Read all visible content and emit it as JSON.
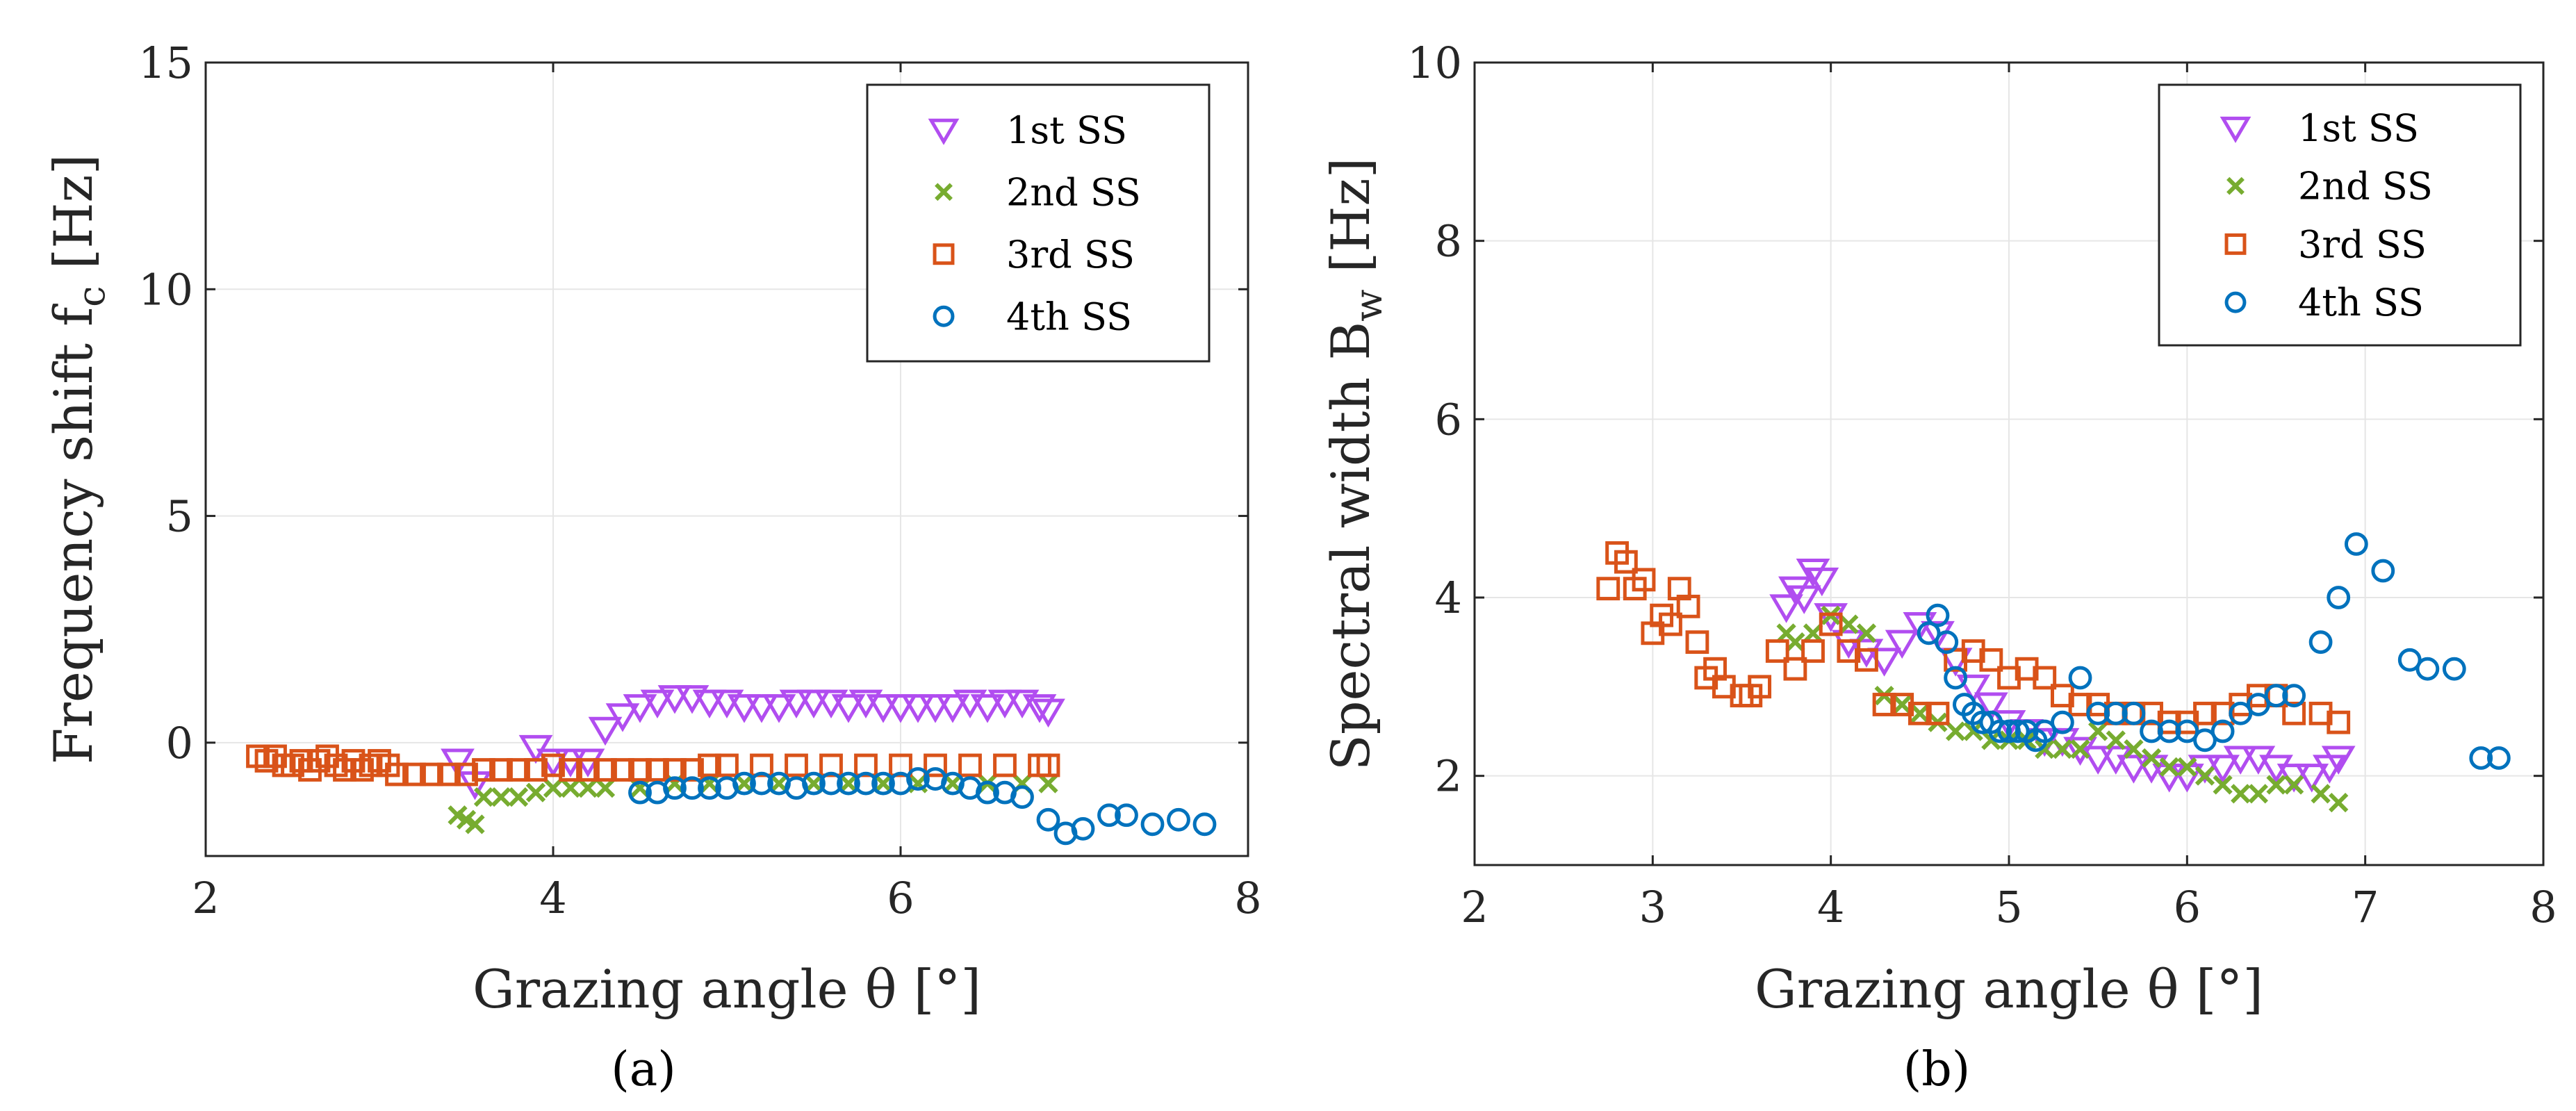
{
  "figure": {
    "caption_a": "(a)",
    "caption_b": "(b)"
  },
  "colors": {
    "ss1": "#b14df0",
    "ss2": "#77ac30",
    "ss3": "#d95319",
    "ss4": "#0072bd",
    "grid": "#e6e6e6",
    "axis": "#262626"
  },
  "chart_data": [
    {
      "id": "a",
      "type": "scatter",
      "xlabel": "Grazing angle θ [°]",
      "ylabel": "Frequency shift  f",
      "ylabel_sub": "c",
      "ylabel_unit": " [Hz]",
      "xlim": [
        2,
        8
      ],
      "ylim": [
        -2.5,
        15
      ],
      "xticks": [
        2,
        4,
        6,
        8
      ],
      "yticks": [
        0,
        5,
        10,
        15
      ],
      "grid": true,
      "legend": "top-right",
      "series": [
        {
          "name": "1st SS",
          "marker": "triangle-down",
          "color": "#b14df0",
          "x": [
            3.45,
            3.55,
            3.9,
            4.0,
            4.1,
            4.2,
            4.3,
            4.4,
            4.5,
            4.6,
            4.7,
            4.8,
            4.9,
            5.0,
            5.1,
            5.2,
            5.3,
            5.4,
            5.5,
            5.6,
            5.7,
            5.8,
            5.9,
            6.0,
            6.1,
            6.2,
            6.3,
            6.4,
            6.5,
            6.6,
            6.7,
            6.8,
            6.85
          ],
          "y": [
            -0.4,
            -0.9,
            -0.1,
            -0.4,
            -0.4,
            -0.4,
            0.3,
            0.6,
            0.8,
            0.9,
            1.0,
            1.0,
            0.9,
            0.9,
            0.8,
            0.8,
            0.8,
            0.9,
            0.9,
            0.9,
            0.8,
            0.9,
            0.8,
            0.8,
            0.8,
            0.8,
            0.8,
            0.9,
            0.8,
            0.9,
            0.9,
            0.8,
            0.7
          ]
        },
        {
          "name": "2nd SS",
          "marker": "x",
          "color": "#77ac30",
          "x": [
            3.45,
            3.5,
            3.55,
            3.6,
            3.7,
            3.8,
            3.9,
            4.0,
            4.1,
            4.2,
            4.3,
            4.5,
            4.7,
            4.9,
            5.1,
            5.3,
            5.5,
            5.7,
            5.9,
            6.1,
            6.3,
            6.5,
            6.7,
            6.85
          ],
          "y": [
            -1.6,
            -1.7,
            -1.8,
            -1.2,
            -1.2,
            -1.2,
            -1.1,
            -1.0,
            -1.0,
            -1.0,
            -1.0,
            -1.0,
            -0.9,
            -0.9,
            -0.9,
            -0.9,
            -0.9,
            -0.9,
            -0.9,
            -0.9,
            -0.9,
            -0.9,
            -0.9,
            -0.9
          ]
        },
        {
          "name": "3rd SS",
          "marker": "square",
          "color": "#d95319",
          "x": [
            2.3,
            2.35,
            2.4,
            2.45,
            2.5,
            2.55,
            2.6,
            2.65,
            2.7,
            2.75,
            2.8,
            2.85,
            2.9,
            2.95,
            3.0,
            3.05,
            3.1,
            3.2,
            3.3,
            3.4,
            3.5,
            3.6,
            3.7,
            3.8,
            3.9,
            4.0,
            4.1,
            4.2,
            4.3,
            4.4,
            4.5,
            4.6,
            4.7,
            4.8,
            4.9,
            5.0,
            5.2,
            5.4,
            5.6,
            5.8,
            6.0,
            6.2,
            6.4,
            6.6,
            6.8,
            6.85
          ],
          "y": [
            -0.3,
            -0.4,
            -0.3,
            -0.5,
            -0.5,
            -0.4,
            -0.6,
            -0.4,
            -0.3,
            -0.5,
            -0.6,
            -0.4,
            -0.6,
            -0.5,
            -0.4,
            -0.5,
            -0.7,
            -0.7,
            -0.7,
            -0.7,
            -0.7,
            -0.6,
            -0.6,
            -0.6,
            -0.6,
            -0.5,
            -0.6,
            -0.6,
            -0.6,
            -0.6,
            -0.6,
            -0.6,
            -0.6,
            -0.6,
            -0.5,
            -0.5,
            -0.5,
            -0.5,
            -0.5,
            -0.5,
            -0.5,
            -0.5,
            -0.5,
            -0.5,
            -0.5,
            -0.5
          ]
        },
        {
          "name": "4th SS",
          "marker": "circle",
          "color": "#0072bd",
          "x": [
            4.5,
            4.6,
            4.7,
            4.8,
            4.9,
            5.0,
            5.1,
            5.2,
            5.3,
            5.4,
            5.5,
            5.6,
            5.7,
            5.8,
            5.9,
            6.0,
            6.1,
            6.2,
            6.3,
            6.4,
            6.5,
            6.6,
            6.7,
            6.85,
            6.95,
            7.05,
            7.2,
            7.3,
            7.45,
            7.6,
            7.75
          ],
          "y": [
            -1.1,
            -1.1,
            -1.0,
            -1.0,
            -1.0,
            -1.0,
            -0.9,
            -0.9,
            -0.9,
            -1.0,
            -0.9,
            -0.9,
            -0.9,
            -0.9,
            -0.9,
            -0.9,
            -0.8,
            -0.8,
            -0.9,
            -1.0,
            -1.1,
            -1.1,
            -1.2,
            -1.7,
            -2.0,
            -1.9,
            -1.6,
            -1.6,
            -1.8,
            -1.7,
            -1.8
          ]
        }
      ]
    },
    {
      "id": "b",
      "type": "scatter",
      "xlabel": "Grazing angle θ [°]",
      "ylabel": "Spectral width B",
      "ylabel_sub": "w",
      "ylabel_unit": " [Hz]",
      "xlim": [
        2,
        8
      ],
      "ylim": [
        1,
        10
      ],
      "xticks": [
        2,
        3,
        4,
        5,
        6,
        7,
        8
      ],
      "yticks": [
        2,
        4,
        6,
        8,
        10
      ],
      "grid": true,
      "legend": "top-right",
      "series": [
        {
          "name": "1st SS",
          "marker": "triangle-down",
          "color": "#b14df0",
          "x": [
            3.75,
            3.8,
            3.85,
            3.9,
            3.95,
            4.0,
            4.1,
            4.2,
            4.3,
            4.4,
            4.5,
            4.6,
            4.7,
            4.8,
            4.9,
            5.0,
            5.1,
            5.2,
            5.3,
            5.4,
            5.5,
            5.6,
            5.7,
            5.8,
            5.9,
            6.0,
            6.1,
            6.2,
            6.3,
            6.4,
            6.5,
            6.6,
            6.7,
            6.8,
            6.85
          ],
          "y": [
            3.9,
            4.1,
            4.0,
            4.3,
            4.2,
            3.8,
            3.5,
            3.4,
            3.3,
            3.5,
            3.7,
            3.6,
            3.3,
            3.0,
            2.8,
            2.6,
            2.5,
            2.4,
            2.4,
            2.3,
            2.2,
            2.2,
            2.1,
            2.1,
            2.0,
            2.0,
            2.1,
            2.1,
            2.2,
            2.2,
            2.1,
            2.0,
            2.0,
            2.1,
            2.2
          ]
        },
        {
          "name": "2nd SS",
          "marker": "x",
          "color": "#77ac30",
          "x": [
            3.75,
            3.8,
            3.9,
            4.0,
            4.1,
            4.2,
            4.3,
            4.4,
            4.5,
            4.6,
            4.7,
            4.8,
            4.9,
            5.0,
            5.1,
            5.2,
            5.3,
            5.4,
            5.5,
            5.6,
            5.7,
            5.8,
            5.9,
            6.0,
            6.1,
            6.2,
            6.3,
            6.4,
            6.5,
            6.6,
            6.75,
            6.85
          ],
          "y": [
            3.6,
            3.5,
            3.6,
            3.8,
            3.7,
            3.6,
            2.9,
            2.8,
            2.7,
            2.6,
            2.5,
            2.5,
            2.4,
            2.4,
            2.4,
            2.3,
            2.3,
            2.3,
            2.5,
            2.4,
            2.3,
            2.2,
            2.1,
            2.1,
            2.0,
            1.9,
            1.8,
            1.8,
            1.9,
            1.9,
            1.8,
            1.7
          ]
        },
        {
          "name": "3rd SS",
          "marker": "square",
          "color": "#d95319",
          "x": [
            2.75,
            2.8,
            2.85,
            2.9,
            2.95,
            3.0,
            3.05,
            3.1,
            3.15,
            3.2,
            3.25,
            3.3,
            3.35,
            3.4,
            3.5,
            3.55,
            3.6,
            3.7,
            3.8,
            3.9,
            4.0,
            4.1,
            4.2,
            4.3,
            4.4,
            4.5,
            4.6,
            4.7,
            4.8,
            4.9,
            5.0,
            5.1,
            5.2,
            5.3,
            5.4,
            5.5,
            5.6,
            5.7,
            5.8,
            5.9,
            6.0,
            6.1,
            6.2,
            6.3,
            6.4,
            6.5,
            6.6,
            6.75,
            6.85
          ],
          "y": [
            4.1,
            4.5,
            4.4,
            4.1,
            4.2,
            3.6,
            3.8,
            3.7,
            4.1,
            3.9,
            3.5,
            3.1,
            3.2,
            3.0,
            2.9,
            2.9,
            3.0,
            3.4,
            3.2,
            3.4,
            3.7,
            3.4,
            3.3,
            2.8,
            2.8,
            2.7,
            2.7,
            3.3,
            3.4,
            3.3,
            3.1,
            3.2,
            3.1,
            2.9,
            2.8,
            2.8,
            2.7,
            2.7,
            2.7,
            2.6,
            2.6,
            2.7,
            2.7,
            2.8,
            2.9,
            2.9,
            2.7,
            2.7,
            2.6
          ]
        },
        {
          "name": "4th SS",
          "marker": "circle",
          "color": "#0072bd",
          "x": [
            4.55,
            4.6,
            4.65,
            4.7,
            4.75,
            4.8,
            4.85,
            4.9,
            4.95,
            5.0,
            5.05,
            5.1,
            5.15,
            5.2,
            5.3,
            5.4,
            5.5,
            5.6,
            5.7,
            5.8,
            5.9,
            6.0,
            6.1,
            6.2,
            6.3,
            6.4,
            6.5,
            6.6,
            6.75,
            6.85,
            6.95,
            7.1,
            7.25,
            7.35,
            7.5,
            7.65,
            7.75
          ],
          "y": [
            3.6,
            3.8,
            3.5,
            3.1,
            2.8,
            2.7,
            2.6,
            2.6,
            2.5,
            2.5,
            2.5,
            2.5,
            2.4,
            2.5,
            2.6,
            3.1,
            2.7,
            2.7,
            2.7,
            2.5,
            2.5,
            2.5,
            2.4,
            2.5,
            2.7,
            2.8,
            2.9,
            2.9,
            3.5,
            4.0,
            4.6,
            4.3,
            3.3,
            3.2,
            3.2,
            2.2,
            2.2
          ]
        }
      ]
    }
  ]
}
